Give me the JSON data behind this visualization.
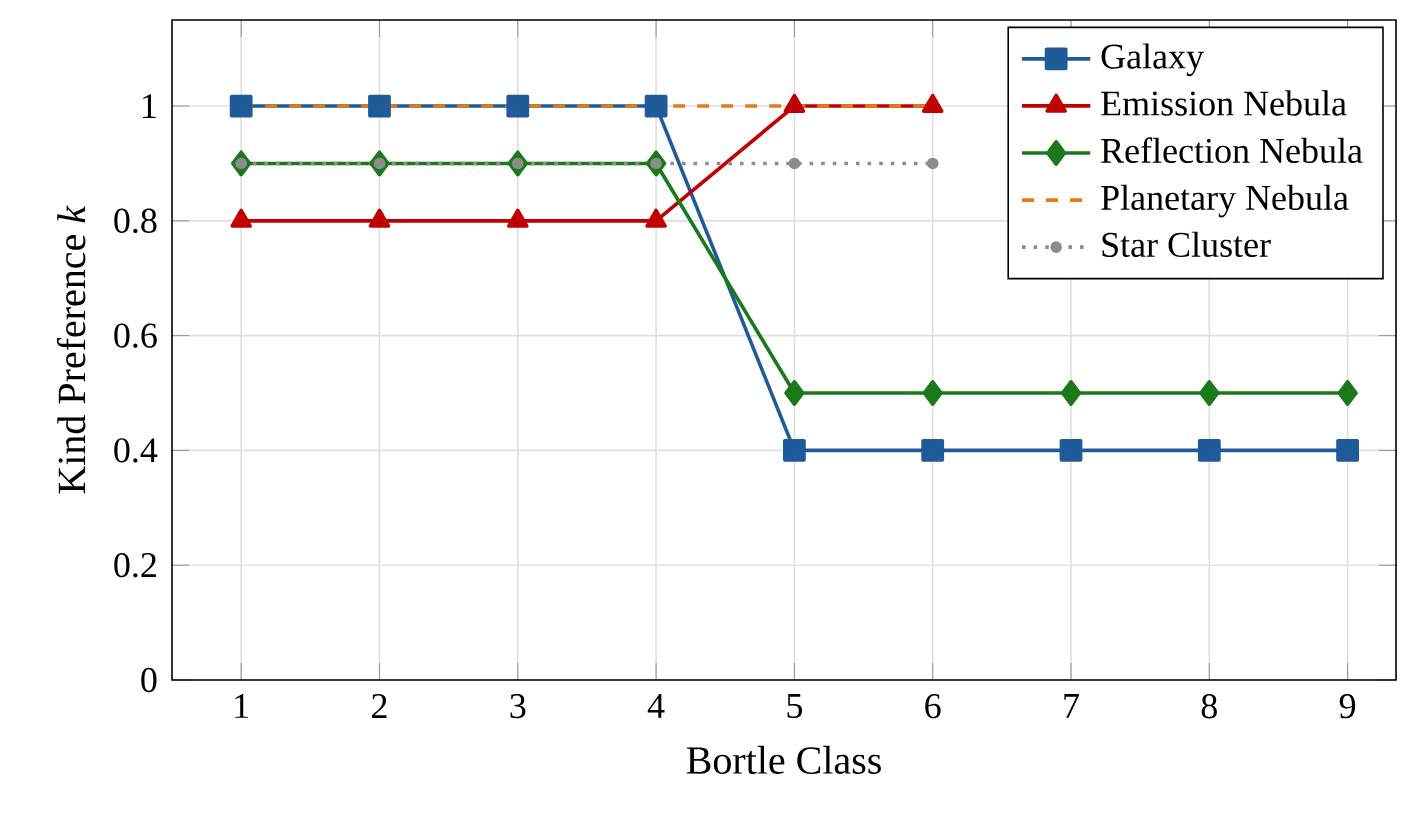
{
  "chart_data": {
    "type": "line",
    "xlabel": "Bortle Class",
    "ylabel": "Kind Preference *k*",
    "x": [
      1,
      2,
      3,
      4,
      5,
      6,
      7,
      8,
      9
    ],
    "xlim": [
      0.5,
      9.35
    ],
    "ylim": [
      0,
      1.15
    ],
    "xticks": [
      1,
      2,
      3,
      4,
      5,
      6,
      7,
      8,
      9
    ],
    "yticks": [
      0,
      0.2,
      0.4,
      0.6,
      0.8,
      1
    ],
    "grid": true,
    "legend": "top right",
    "series": [
      {
        "name": "Galaxy",
        "color": "#1f5a99",
        "marker": "square",
        "line_style": "solid",
        "values": [
          1,
          1,
          1,
          1,
          0.4,
          0.4,
          0.4,
          0.4,
          0.4
        ]
      },
      {
        "name": "Emission Nebula",
        "color": "#c00000",
        "marker": "triangle",
        "line_style": "solid",
        "values": [
          0.8,
          0.8,
          0.8,
          0.8,
          1,
          1,
          null,
          null,
          null
        ]
      },
      {
        "name": "Reflection Nebula",
        "color": "#1a7a1a",
        "marker": "diamond",
        "line_style": "solid",
        "values": [
          0.9,
          0.9,
          0.9,
          0.9,
          0.5,
          0.5,
          0.5,
          0.5,
          0.5
        ]
      },
      {
        "name": "Planetary Nebula",
        "color": "#e07b1a",
        "marker": "none",
        "line_style": "dashed",
        "values": [
          1,
          1,
          1,
          1,
          1,
          1,
          null,
          null,
          null
        ]
      },
      {
        "name": "Star Cluster",
        "color": "#8c8c8c",
        "marker": "circle",
        "line_style": "dotted",
        "values": [
          0.9,
          0.9,
          0.9,
          0.9,
          0.9,
          0.9,
          null,
          null,
          null
        ]
      }
    ]
  }
}
